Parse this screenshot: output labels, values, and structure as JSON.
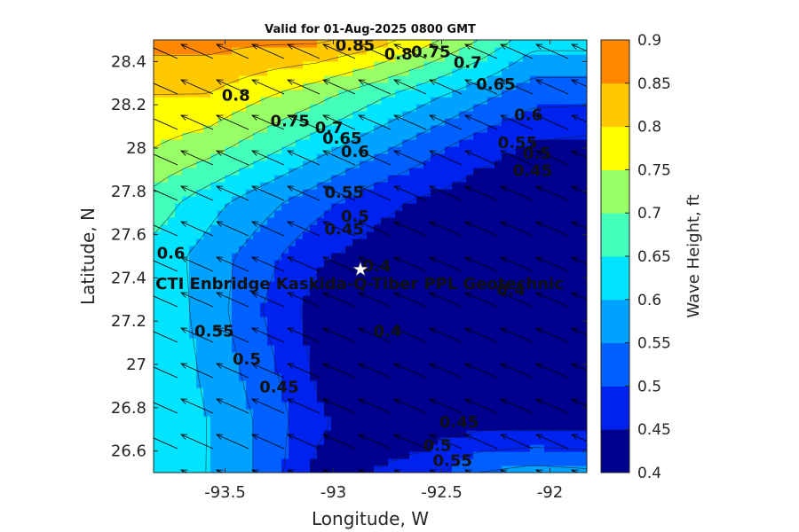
{
  "chart_data": {
    "type": "heatmap",
    "title": "Valid for 01-Aug-2025 0800 GMT",
    "xlabel": "Longitude, W",
    "ylabel": "Latitude, N",
    "xlim": [
      -93.83,
      -91.83
    ],
    "ylim": [
      26.5,
      28.5
    ],
    "xticks": [
      -93.5,
      -93,
      -92.5,
      -92
    ],
    "xtick_labels": [
      "-93.5",
      "-93",
      "-92.5",
      "-92"
    ],
    "yticks": [
      26.6,
      26.8,
      27,
      27.2,
      27.4,
      27.6,
      27.8,
      28,
      28.2,
      28.4
    ],
    "ytick_labels": [
      "26.6",
      "26.8",
      "27",
      "27.2",
      "27.4",
      "27.6",
      "27.8",
      "28",
      "28.2",
      "28.4"
    ],
    "colorbar": {
      "label": "Wave Height, ft",
      "levels": [
        0.4,
        0.45,
        0.5,
        0.55,
        0.6,
        0.65,
        0.7,
        0.75,
        0.8,
        0.85,
        0.9
      ],
      "tick_labels": [
        "0.4",
        "0.45",
        "0.5",
        "0.55",
        "0.6",
        "0.65",
        "0.7",
        "0.75",
        "0.8",
        "0.85",
        "0.9"
      ],
      "colors": [
        "#00008f",
        "#0022ee",
        "#0060ff",
        "#00a2ff",
        "#00e4ff",
        "#44ffbb",
        "#99ff66",
        "#ffff00",
        "#ffc800",
        "#ff8800",
        "#ff4a00"
      ]
    },
    "grid_lon": [
      -93.83,
      -93.58,
      -93.33,
      -93.08,
      -92.83,
      -92.58,
      -92.33,
      -92.08,
      -91.83
    ],
    "grid_lat": [
      26.5,
      26.75,
      27.0,
      27.25,
      27.5,
      27.75,
      28.0,
      28.25,
      28.5
    ],
    "wave_height": [
      [
        0.62,
        0.6,
        0.54,
        0.44,
        0.45,
        0.47,
        0.55,
        0.57,
        0.56
      ],
      [
        0.63,
        0.6,
        0.54,
        0.46,
        0.42,
        0.42,
        0.42,
        0.42,
        0.42
      ],
      [
        0.64,
        0.59,
        0.52,
        0.44,
        0.41,
        0.41,
        0.41,
        0.41,
        0.42
      ],
      [
        0.64,
        0.58,
        0.5,
        0.43,
        0.4,
        0.4,
        0.41,
        0.41,
        0.41
      ],
      [
        0.63,
        0.58,
        0.52,
        0.46,
        0.43,
        0.41,
        0.41,
        0.41,
        0.41
      ],
      [
        0.68,
        0.62,
        0.57,
        0.52,
        0.47,
        0.44,
        0.42,
        0.42,
        0.41
      ],
      [
        0.75,
        0.72,
        0.67,
        0.62,
        0.57,
        0.52,
        0.47,
        0.44,
        0.43
      ],
      [
        0.8,
        0.8,
        0.76,
        0.72,
        0.67,
        0.62,
        0.57,
        0.52,
        0.52
      ],
      [
        0.87,
        0.87,
        0.86,
        0.86,
        0.83,
        0.77,
        0.7,
        0.62,
        0.62
      ]
    ],
    "wind_direction": "from south-east (arrows point north-west)",
    "contour_labels": [
      {
        "text": "0.85",
        "lon": -92.9,
        "lat": 28.45
      },
      {
        "text": "0.8",
        "lon": -92.7,
        "lat": 28.41
      },
      {
        "text": "0.75",
        "lon": -92.55,
        "lat": 28.42
      },
      {
        "text": "0.7",
        "lon": -92.38,
        "lat": 28.37
      },
      {
        "text": "0.65",
        "lon": -92.25,
        "lat": 28.27
      },
      {
        "text": "0.8",
        "lon": -93.45,
        "lat": 28.22
      },
      {
        "text": "0.6",
        "lon": -92.1,
        "lat": 28.13
      },
      {
        "text": "0.75",
        "lon": -93.2,
        "lat": 28.1
      },
      {
        "text": "0.7",
        "lon": -93.02,
        "lat": 28.07
      },
      {
        "text": "0.55",
        "lon": -92.15,
        "lat": 28.0
      },
      {
        "text": "0.65",
        "lon": -92.96,
        "lat": 28.02
      },
      {
        "text": "0.5",
        "lon": -92.06,
        "lat": 27.95
      },
      {
        "text": "0.6",
        "lon": -92.9,
        "lat": 27.96
      },
      {
        "text": "0.45",
        "lon": -92.08,
        "lat": 27.87
      },
      {
        "text": "0.55",
        "lon": -92.95,
        "lat": 27.77
      },
      {
        "text": "0.5",
        "lon": -92.9,
        "lat": 27.66
      },
      {
        "text": "0.45",
        "lon": -92.95,
        "lat": 27.6
      },
      {
        "text": "0.6",
        "lon": -93.75,
        "lat": 27.49
      },
      {
        "text": "0.4",
        "lon": -92.8,
        "lat": 27.43
      },
      {
        "text": "0.4",
        "lon": -92.18,
        "lat": 27.32
      },
      {
        "text": "0.55",
        "lon": -93.55,
        "lat": 27.13
      },
      {
        "text": "0.4",
        "lon": -92.75,
        "lat": 27.13
      },
      {
        "text": "0.5",
        "lon": -93.4,
        "lat": 27.0
      },
      {
        "text": "0.45",
        "lon": -93.25,
        "lat": 26.87
      },
      {
        "text": "0.45",
        "lon": -92.42,
        "lat": 26.71
      },
      {
        "text": "0.5",
        "lon": -92.52,
        "lat": 26.6
      },
      {
        "text": "0.55",
        "lon": -92.45,
        "lat": 26.53
      }
    ],
    "site": {
      "name": "CTI Enbridge  Kaskida-Q-Tiber PPL Geotechnic",
      "lon": -92.88,
      "lat": 27.44
    }
  }
}
